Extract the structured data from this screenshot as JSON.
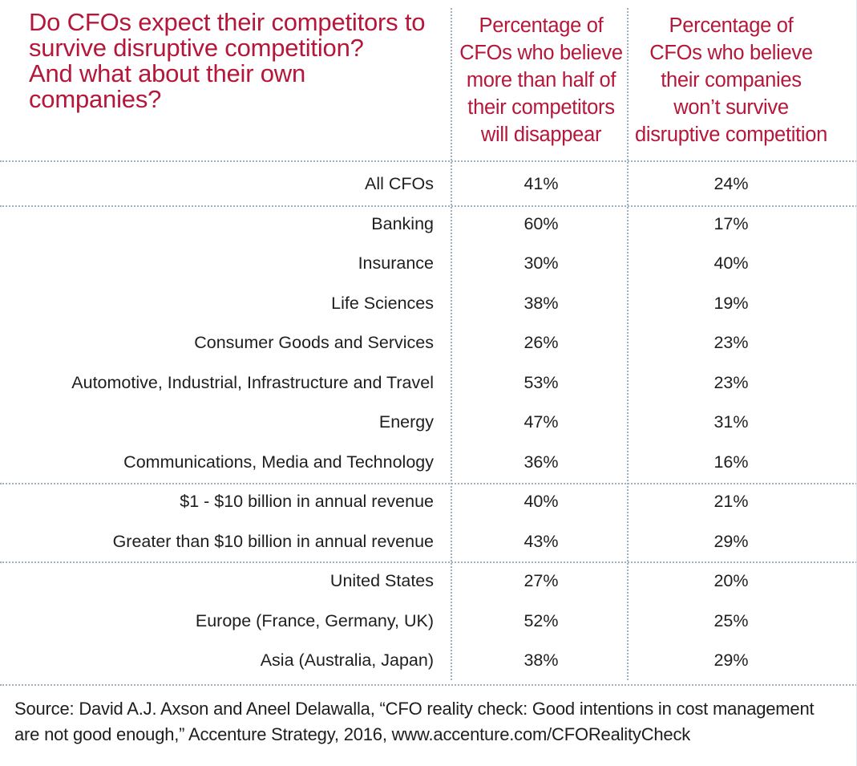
{
  "title": "Do CFOs expect their competitors to\nsurvive disruptive competition?\nAnd what about their own\ncompanies?",
  "columns": [
    "Percentage of\nCFOs who believe\nmore than half of\ntheir competitors\nwill disappear",
    "Percentage of\nCFOs who believe\ntheir companies\nwon’t survive\ndisruptive competition"
  ],
  "source": "Source: David A.J. Axson and Aneel Delawalla, “CFO reality check: Good intentions in cost management\nare not good enough,” Accenture Strategy, 2016, www.accenture.com/CFORealityCheck",
  "chart_data": {
    "type": "table",
    "title": "Do CFOs expect their competitors to survive disruptive competition? And what about their own companies?",
    "columns": [
      "Percentage of CFOs who believe more than half of their competitors will disappear",
      "Percentage of CFOs who believe their companies won’t survive disruptive competition"
    ],
    "rows": [
      {
        "label": "All CFOs",
        "values": [
          "41%",
          "24%"
        ]
      },
      {
        "label": "Banking",
        "values": [
          "60%",
          "17%"
        ]
      },
      {
        "label": "Insurance",
        "values": [
          "30%",
          "40%"
        ]
      },
      {
        "label": "Life Sciences",
        "values": [
          "38%",
          "19%"
        ]
      },
      {
        "label": "Consumer Goods and Services",
        "values": [
          "26%",
          "23%"
        ]
      },
      {
        "label": "Automotive, Industrial, Infrastructure and Travel",
        "values": [
          "53%",
          "23%"
        ]
      },
      {
        "label": "Energy",
        "values": [
          "47%",
          "31%"
        ]
      },
      {
        "label": "Communications, Media and Technology",
        "values": [
          "36%",
          "16%"
        ]
      },
      {
        "label": "$1 - $10 billion in annual revenue",
        "values": [
          "40%",
          "21%"
        ]
      },
      {
        "label": "Greater than $10 billion in annual revenue",
        "values": [
          "43%",
          "29%"
        ]
      },
      {
        "label": "United States",
        "values": [
          "27%",
          "20%"
        ]
      },
      {
        "label": "Europe (France, Germany, UK)",
        "values": [
          "52%",
          "25%"
        ]
      },
      {
        "label": "Asia (Australia, Japan)",
        "values": [
          "38%",
          "29%"
        ]
      }
    ],
    "groups": [
      [
        "All CFOs"
      ],
      [
        "Banking",
        "Insurance",
        "Life Sciences",
        "Consumer Goods and Services",
        "Automotive, Industrial, Infrastructure and Travel",
        "Energy",
        "Communications, Media and Technology"
      ],
      [
        "$1 - $10 billion in annual revenue",
        "Greater than $10 billion in annual revenue"
      ],
      [
        "United States",
        "Europe (France, Germany, UK)",
        "Asia (Australia, Japan)"
      ]
    ],
    "colors": {
      "heading": "#b5173a",
      "text": "#1e1e1e",
      "rule": "#9fb0be"
    }
  }
}
